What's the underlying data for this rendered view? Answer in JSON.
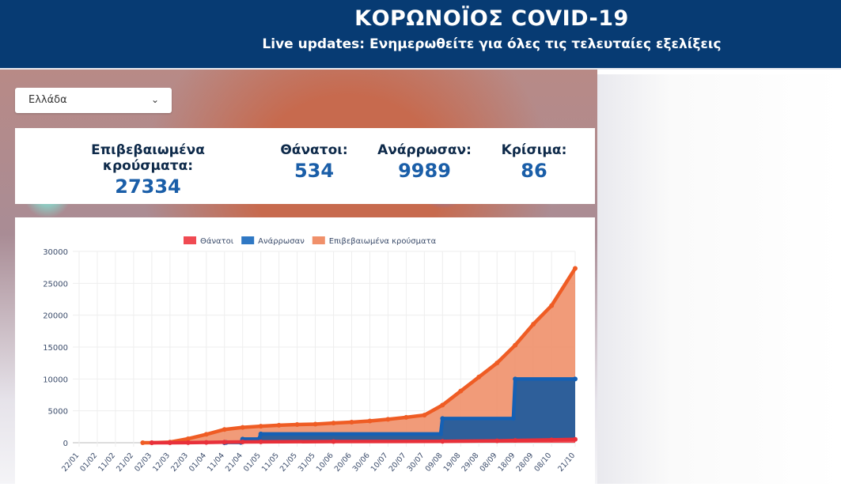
{
  "header": {
    "title": "ΚΟΡΩΝΟΪΟΣ COVID-19",
    "subtitle": "Live updates: Ενημερωθείτε για όλες τις τελευταίες εξελίξεις"
  },
  "country_select": {
    "value": "Ελλάδα",
    "icon": "chevron-down-icon"
  },
  "stats": [
    {
      "label": "Επιβεβαιωμένα κρούσματα:",
      "value": "27334"
    },
    {
      "label": "Θάνατοι:",
      "value": "534"
    },
    {
      "label": "Ανάρρωσαν:",
      "value": "9989"
    },
    {
      "label": "Κρίσιμα:",
      "value": "86"
    }
  ],
  "chart_data": {
    "type": "area",
    "title": "",
    "xlabel": "",
    "ylabel": "",
    "ylim": [
      0,
      30000
    ],
    "yticks": [
      "0",
      "5000",
      "10000",
      "15000",
      "20000",
      "25000",
      "30000"
    ],
    "categories": [
      "22/01",
      "01/02",
      "11/02",
      "21/02",
      "02/03",
      "12/03",
      "22/03",
      "01/04",
      "11/04",
      "21/04",
      "01/05",
      "11/05",
      "21/05",
      "31/05",
      "10/06",
      "20/06",
      "30/06",
      "10/07",
      "20/07",
      "30/07",
      "09/08",
      "19/08",
      "29/08",
      "08/09",
      "18/09",
      "28/09",
      "08/10",
      "21/10"
    ],
    "grid": true,
    "legend": "top",
    "series": [
      {
        "name": "Θάνατοι",
        "color": "#e8303a",
        "fill": "#f04a52",
        "points": [
          [
            "02/03",
            0
          ],
          [
            "12/03",
            1
          ],
          [
            "22/03",
            15
          ],
          [
            "01/04",
            50
          ],
          [
            "11/04",
            90
          ],
          [
            "21/04",
            120
          ],
          [
            "01/05",
            140
          ],
          [
            "10/06",
            180
          ],
          [
            "09/08",
            210
          ],
          [
            "08/09",
            290
          ],
          [
            "18/09",
            350
          ],
          [
            "08/10",
            450
          ],
          [
            "21/10",
            534
          ]
        ]
      },
      {
        "name": "Ανάρρωσαν",
        "color": "#1560b4",
        "fill": "#2e5f9a",
        "points": [
          [
            "11/04",
            0
          ],
          [
            "12/04",
            52
          ],
          [
            "20/04",
            52
          ],
          [
            "21/04",
            577
          ],
          [
            "30/04",
            577
          ],
          [
            "01/05",
            1374
          ],
          [
            "08/08",
            1374
          ],
          [
            "09/08",
            3804
          ],
          [
            "17/09",
            3804
          ],
          [
            "18/09",
            9989
          ],
          [
            "21/10",
            9989
          ]
        ]
      },
      {
        "name": "Επιβεβαιωμένα κρούσματα",
        "color": "#ef5c24",
        "fill": "#f0906a",
        "points": [
          [
            "26/02",
            1
          ],
          [
            "02/03",
            7
          ],
          [
            "12/03",
            99
          ],
          [
            "22/03",
            624
          ],
          [
            "01/04",
            1314
          ],
          [
            "11/04",
            2081
          ],
          [
            "21/04",
            2401
          ],
          [
            "01/05",
            2591
          ],
          [
            "11/05",
            2744
          ],
          [
            "21/05",
            2853
          ],
          [
            "31/05",
            2917
          ],
          [
            "10/06",
            3089
          ],
          [
            "20/06",
            3226
          ],
          [
            "30/06",
            3409
          ],
          [
            "10/07",
            3672
          ],
          [
            "20/07",
            3983
          ],
          [
            "30/07",
            4330
          ],
          [
            "09/08",
            5900
          ],
          [
            "19/08",
            8100
          ],
          [
            "29/08",
            10300
          ],
          [
            "08/09",
            12500
          ],
          [
            "18/09",
            15300
          ],
          [
            "28/09",
            18600
          ],
          [
            "08/10",
            21500
          ],
          [
            "21/10",
            27334
          ]
        ]
      }
    ]
  }
}
